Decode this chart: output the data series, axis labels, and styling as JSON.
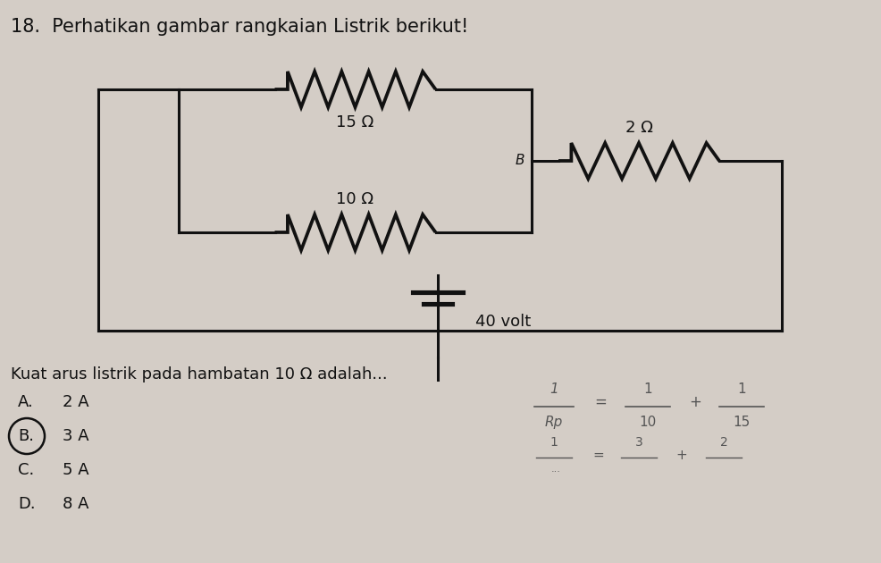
{
  "title_number": "18.",
  "title_text": "Perhatikan gambar rangkaian Listrik berikut!",
  "question_text": "Kuat arus listrik pada hambatan 10 Ω adalah...",
  "options": [
    "A.   2 A",
    "B.   3 A",
    "C.   5 A",
    "D.   8 A"
  ],
  "circled_option": 1,
  "r1_label": "15 Ω",
  "r2_label": "10 Ω",
  "r3_label": "2 Ω",
  "battery_label": "40 volt",
  "node_b_label": "B",
  "bg_color": "#d4cdc6",
  "line_color": "#111111",
  "text_color": "#111111",
  "formula_color": "#555555"
}
